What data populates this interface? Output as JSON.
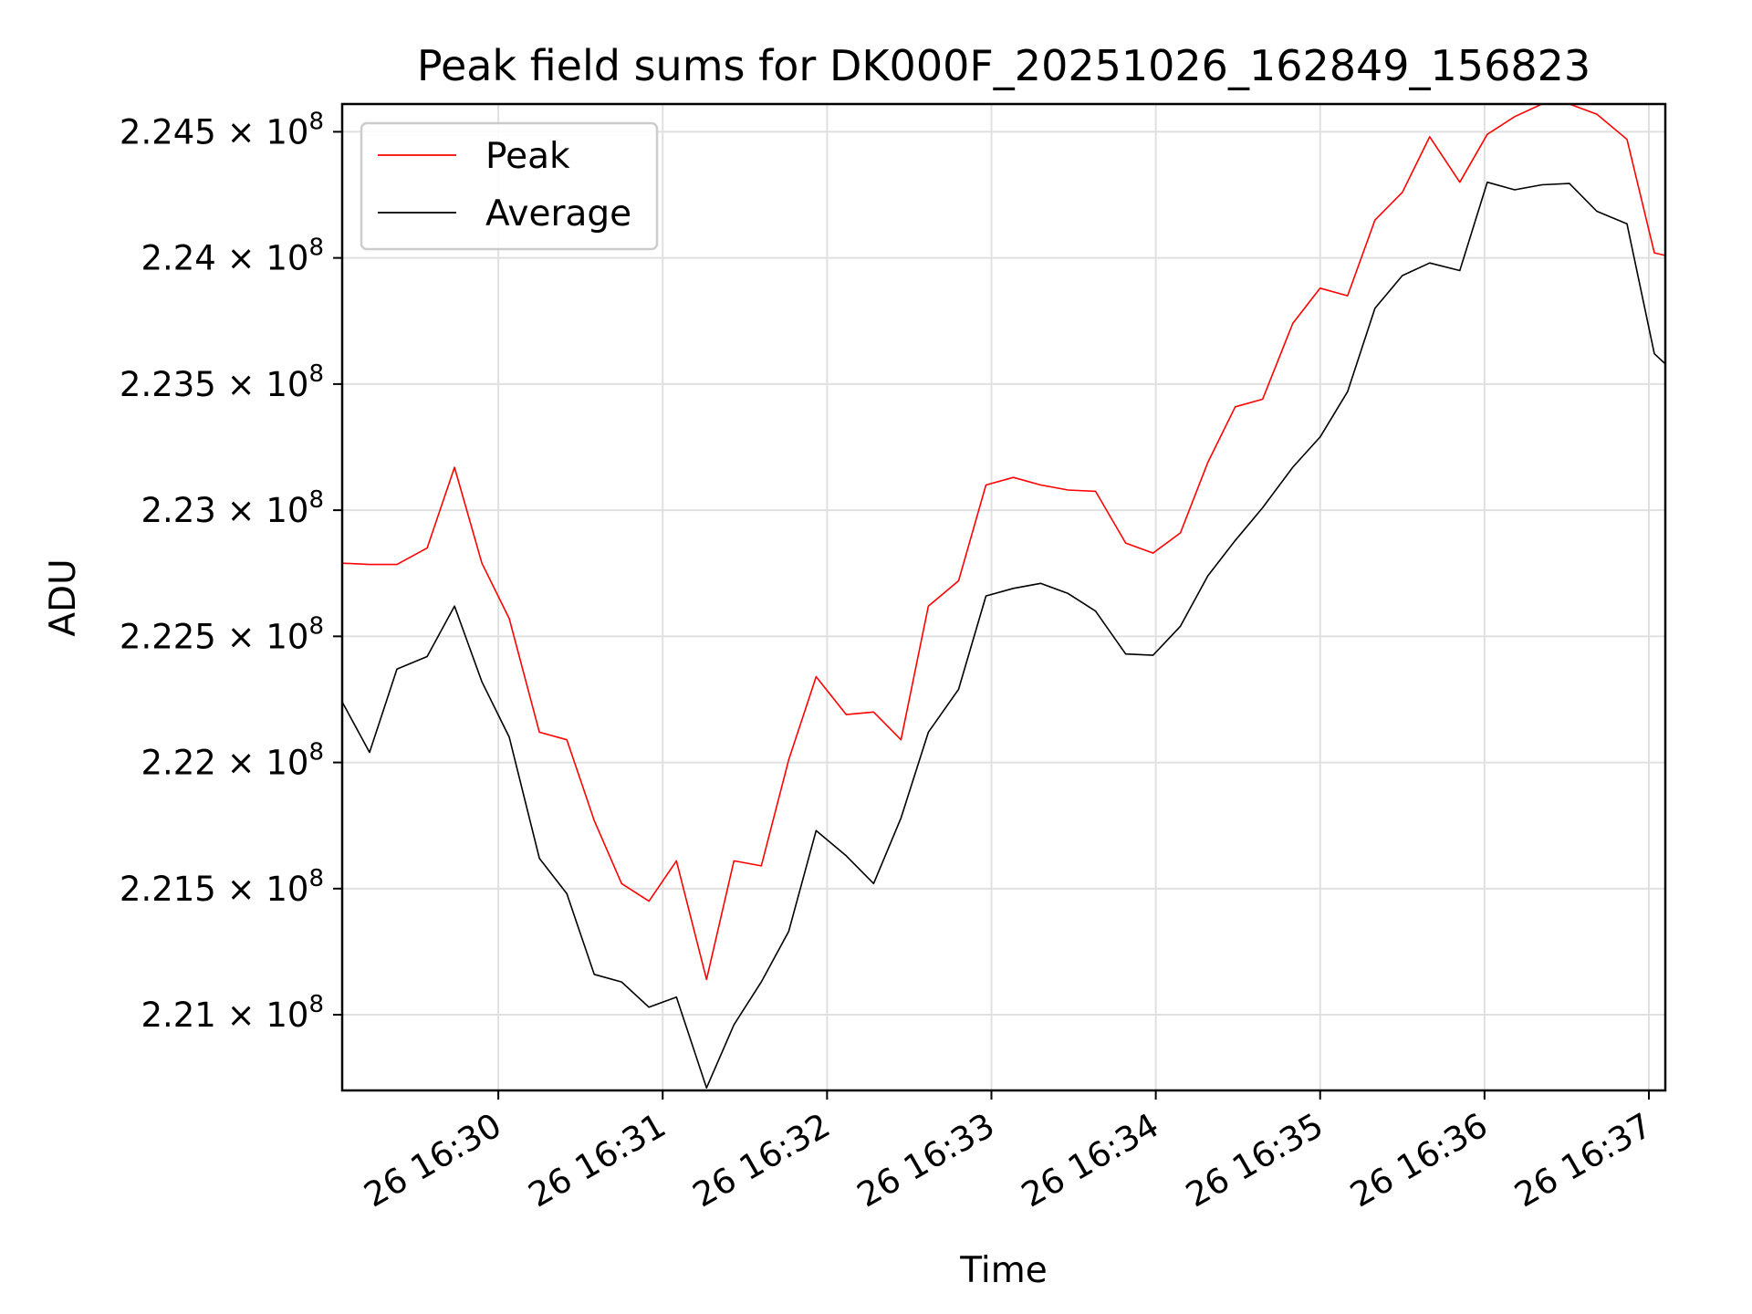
{
  "chart_data": {
    "type": "line",
    "title": "Peak field sums for DK000F_20251026_162849_156823",
    "xlabel": "Time",
    "ylabel": "ADU",
    "x_axis": {
      "type": "datetime",
      "range": [
        "2025-10-26 16:29:03",
        "2025-10-26 16:37:06"
      ],
      "ticks": [
        "2025-10-26 16:30",
        "2025-10-26 16:31",
        "2025-10-26 16:32",
        "2025-10-26 16:33",
        "2025-10-26 16:34",
        "2025-10-26 16:35",
        "2025-10-26 16:36",
        "2025-10-26 16:37"
      ],
      "tick_labels": [
        "26 16:30",
        "26 16:31",
        "26 16:32",
        "26 16:33",
        "26 16:34",
        "26 16:35",
        "26 16:36",
        "26 16:37"
      ],
      "tick_label_rotation": 30
    },
    "y_axis": {
      "range": [
        220700000,
        224610000
      ],
      "ticks": [
        221000000,
        221500000,
        222000000,
        222500000,
        223000000,
        223500000,
        224000000,
        224500000
      ],
      "tick_mantissas": [
        "2.21",
        "2.215",
        "2.22",
        "2.225",
        "2.23",
        "2.235",
        "2.24",
        "2.245"
      ],
      "tick_exponent": "8"
    },
    "grid": true,
    "legend": {
      "placement": "top-left",
      "entries": [
        "Peak",
        "Average"
      ]
    },
    "x": [
      "2025-10-26 16:29:03",
      "2025-10-26 16:29:13",
      "2025-10-26 16:29:23",
      "2025-10-26 16:29:34",
      "2025-10-26 16:29:44",
      "2025-10-26 16:29:54",
      "2025-10-26 16:30:04",
      "2025-10-26 16:30:15",
      "2025-10-26 16:30:25",
      "2025-10-26 16:30:35",
      "2025-10-26 16:30:45",
      "2025-10-26 16:30:55",
      "2025-10-26 16:31:05",
      "2025-10-26 16:31:16",
      "2025-10-26 16:31:26",
      "2025-10-26 16:31:36",
      "2025-10-26 16:31:46",
      "2025-10-26 16:31:56",
      "2025-10-26 16:32:07",
      "2025-10-26 16:32:17",
      "2025-10-26 16:32:27",
      "2025-10-26 16:32:37",
      "2025-10-26 16:32:48",
      "2025-10-26 16:32:58",
      "2025-10-26 16:33:08",
      "2025-10-26 16:33:18",
      "2025-10-26 16:33:28",
      "2025-10-26 16:33:38",
      "2025-10-26 16:33:49",
      "2025-10-26 16:33:59",
      "2025-10-26 16:34:09",
      "2025-10-26 16:34:19",
      "2025-10-26 16:34:29",
      "2025-10-26 16:34:39",
      "2025-10-26 16:34:50",
      "2025-10-26 16:35:00",
      "2025-10-26 16:35:10",
      "2025-10-26 16:35:20",
      "2025-10-26 16:35:30",
      "2025-10-26 16:35:40",
      "2025-10-26 16:35:51",
      "2025-10-26 16:36:01",
      "2025-10-26 16:36:11",
      "2025-10-26 16:36:21",
      "2025-10-26 16:36:31",
      "2025-10-26 16:36:41",
      "2025-10-26 16:36:52",
      "2025-10-26 16:37:02",
      "2025-10-26 16:37:06"
    ],
    "series": [
      {
        "name": "Peak",
        "color": "#ff0000",
        "values": [
          222790000,
          222785000,
          222785000,
          222850000,
          223170000,
          222790000,
          222570000,
          222120000,
          222090000,
          221770000,
          221520000,
          221450000,
          221610000,
          221140000,
          221610000,
          221590000,
          222010000,
          222340000,
          222190000,
          222200000,
          222090000,
          222620000,
          222720000,
          223100000,
          223130000,
          223100000,
          223080000,
          223075000,
          222870000,
          222830000,
          222910000,
          223190000,
          223410000,
          223440000,
          223740000,
          223880000,
          223850000,
          224150000,
          224260000,
          224480000,
          224300000,
          224490000,
          224560000,
          224610000,
          224610000,
          224570000,
          224470000,
          224020000,
          224010000
        ]
      },
      {
        "name": "Average",
        "color": "#000000",
        "values": [
          222240000,
          222040000,
          222370000,
          222420000,
          222620000,
          222320000,
          222100000,
          221620000,
          221480000,
          221160000,
          221130000,
          221030000,
          221070000,
          220710000,
          220960000,
          221130000,
          221330000,
          221730000,
          221630000,
          221520000,
          221780000,
          222120000,
          222290000,
          222660000,
          222690000,
          222710000,
          222670000,
          222600000,
          222430000,
          222425000,
          222540000,
          222740000,
          222880000,
          223010000,
          223170000,
          223290000,
          223470000,
          223800000,
          223930000,
          223980000,
          223950000,
          224300000,
          224270000,
          224290000,
          224295000,
          224185000,
          224135000,
          223620000,
          223580000
        ]
      }
    ]
  }
}
